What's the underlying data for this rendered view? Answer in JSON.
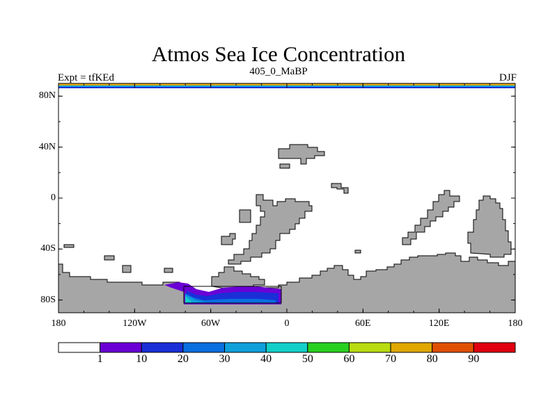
{
  "title": "Atmos Sea Ice Concentration",
  "subtitle_left": "Expt = tfKEd",
  "subtitle_center": "405_0_MaBP",
  "subtitle_right": "DJF",
  "map": {
    "projection": "cylindrical equidistant",
    "lon_range": [
      -180,
      180
    ],
    "lat_range": [
      -90,
      90
    ],
    "y_ticks": [
      {
        "label": "80N",
        "lat": 80
      },
      {
        "label": "40N",
        "lat": 40
      },
      {
        "label": "0",
        "lat": 0
      },
      {
        "label": "40S",
        "lat": -40
      },
      {
        "label": "80S",
        "lat": -80
      }
    ],
    "x_ticks": [
      {
        "label": "180",
        "lon": -180
      },
      {
        "label": "120W",
        "lon": -120
      },
      {
        "label": "60W",
        "lon": -60
      },
      {
        "label": "0",
        "lon": 0
      },
      {
        "label": "60E",
        "lon": 60
      },
      {
        "label": "120E",
        "lon": 120
      },
      {
        "label": "180",
        "lon": 180
      }
    ],
    "land_color": "#a6a6a6",
    "land_outline": "#000000"
  },
  "colorbar": {
    "colors": [
      "#ffffff",
      "#6a00d6",
      "#1a2fd8",
      "#0a6fe0",
      "#0fa0dc",
      "#12d0c8",
      "#28d020",
      "#b8dc10",
      "#e0a800",
      "#e05000",
      "#e00010"
    ],
    "labels": [
      "1",
      "10",
      "20",
      "30",
      "40",
      "50",
      "60",
      "70",
      "80",
      "90"
    ]
  }
}
